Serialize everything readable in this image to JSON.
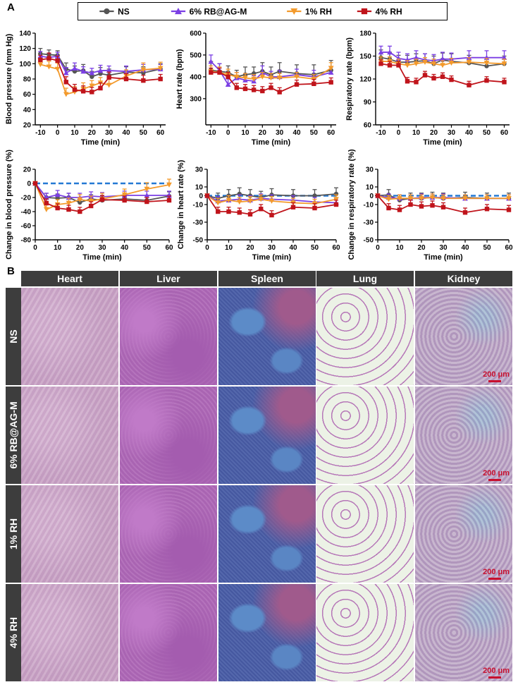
{
  "panel_labels": {
    "a": "A",
    "b": "B"
  },
  "legend": [
    {
      "name": "NS",
      "color": "#555555",
      "marker": "circle"
    },
    {
      "name": "6% RB@AG-M",
      "color": "#7b3fe4",
      "marker": "triangle-up"
    },
    {
      "name": "1% RH",
      "color": "#f39a2c",
      "marker": "triangle-down"
    },
    {
      "name": "4% RH",
      "color": "#c0141b",
      "marker": "square"
    }
  ],
  "chart_data": [
    {
      "type": "line",
      "title": "",
      "xlabel": "Time (min)",
      "ylabel": "Blood pressure (mm Hg)",
      "xlim": [
        -13,
        63
      ],
      "ylim": [
        20,
        140
      ],
      "xticks": [
        -10,
        0,
        10,
        20,
        30,
        40,
        50,
        60
      ],
      "yticks": [
        20,
        40,
        60,
        80,
        100,
        120,
        140
      ],
      "x": [
        -10,
        -5,
        0,
        5,
        10,
        15,
        20,
        25,
        30,
        40,
        50,
        60
      ],
      "series": [
        {
          "name": "NS",
          "values": [
            113,
            112,
            111,
            93,
            90,
            91,
            83,
            87,
            85,
            89,
            88,
            93
          ],
          "errors": [
            7,
            6,
            6,
            8,
            7,
            8,
            7,
            8,
            8,
            7,
            8,
            7
          ]
        },
        {
          "name": "6% RB@AG-M",
          "values": [
            110,
            108,
            110,
            88,
            94,
            90,
            88,
            91,
            91,
            90,
            92,
            93
          ],
          "errors": [
            6,
            6,
            5,
            7,
            7,
            6,
            6,
            7,
            6,
            7,
            7,
            6
          ]
        },
        {
          "name": "1% RH",
          "values": [
            99,
            96,
            93,
            60,
            63,
            67,
            71,
            75,
            72,
            84,
            92,
            94
          ],
          "errors": [
            7,
            7,
            8,
            8,
            7,
            8,
            7,
            7,
            8,
            8,
            9,
            8
          ]
        },
        {
          "name": "4% RH",
          "values": [
            105,
            107,
            104,
            76,
            66,
            64,
            63,
            68,
            82,
            80,
            78,
            80
          ],
          "errors": [
            6,
            7,
            6,
            7,
            7,
            7,
            6,
            7,
            7,
            7,
            7,
            6
          ]
        }
      ]
    },
    {
      "type": "line",
      "title": "",
      "xlabel": "Time (min)",
      "ylabel": "Heart rate (bpm)",
      "xlim": [
        -13,
        63
      ],
      "ylim": [
        180,
        600
      ],
      "xticks": [
        -10,
        0,
        10,
        20,
        30,
        40,
        50,
        60
      ],
      "yticks": [
        300,
        400,
        500,
        600
      ],
      "x": [
        -10,
        -5,
        0,
        5,
        10,
        15,
        20,
        25,
        30,
        40,
        50,
        60
      ],
      "series": [
        {
          "name": "NS",
          "values": [
            430,
            425,
            420,
            400,
            410,
            415,
            425,
            410,
            425,
            415,
            410,
            430
          ],
          "errors": [
            40,
            35,
            30,
            30,
            35,
            30,
            40,
            35,
            40,
            40,
            45,
            45
          ]
        },
        {
          "name": "6% RB@AG-M",
          "values": [
            470,
            430,
            365,
            395,
            385,
            380,
            420,
            400,
            400,
            410,
            400,
            420
          ],
          "errors": [
            30,
            30,
            25,
            25,
            30,
            25,
            30,
            25,
            30,
            25,
            30,
            25
          ]
        },
        {
          "name": "1% RH",
          "values": [
            425,
            420,
            410,
            400,
            395,
            390,
            400,
            395,
            395,
            400,
            390,
            440
          ],
          "errors": [
            25,
            25,
            25,
            20,
            20,
            20,
            20,
            20,
            20,
            20,
            20,
            25
          ]
        },
        {
          "name": "4% RH",
          "values": [
            420,
            420,
            400,
            350,
            345,
            340,
            335,
            350,
            330,
            365,
            368,
            375
          ],
          "errors": [
            20,
            20,
            20,
            20,
            20,
            20,
            20,
            20,
            20,
            20,
            20,
            20
          ]
        }
      ]
    },
    {
      "type": "line",
      "title": "",
      "xlabel": "Time (min)",
      "ylabel": "Respiratory rate (bpm)",
      "xlim": [
        -13,
        63
      ],
      "ylim": [
        60,
        180
      ],
      "xticks": [
        -10,
        0,
        10,
        20,
        30,
        40,
        50,
        60
      ],
      "yticks": [
        60,
        90,
        120,
        150,
        180
      ],
      "x": [
        -10,
        -5,
        0,
        5,
        10,
        15,
        20,
        25,
        30,
        40,
        50,
        60
      ],
      "series": [
        {
          "name": "NS",
          "values": [
            148,
            146,
            142,
            142,
            143,
            144,
            140,
            145,
            143,
            141,
            137,
            140
          ],
          "errors": [
            10,
            9,
            9,
            9,
            10,
            9,
            10,
            9,
            10,
            10,
            10,
            10
          ]
        },
        {
          "name": "6% RB@AG-M",
          "values": [
            155,
            155,
            147,
            145,
            148,
            145,
            144,
            146,
            146,
            148,
            148,
            148
          ],
          "errors": [
            8,
            8,
            8,
            8,
            9,
            8,
            8,
            9,
            8,
            9,
            9,
            9
          ]
        },
        {
          "name": "1% RH",
          "values": [
            143,
            143,
            140,
            138,
            140,
            142,
            140,
            138,
            141,
            142,
            141,
            140
          ],
          "errors": [
            6,
            6,
            6,
            6,
            6,
            6,
            6,
            6,
            6,
            6,
            6,
            6
          ]
        },
        {
          "name": "4% RH",
          "values": [
            140,
            138,
            138,
            117,
            116,
            125,
            121,
            123,
            119,
            112,
            118,
            116
          ],
          "errors": [
            5,
            5,
            5,
            5,
            5,
            5,
            5,
            5,
            5,
            5,
            5,
            5
          ]
        }
      ]
    },
    {
      "type": "line",
      "title": "",
      "xlabel": "Time (min)",
      "ylabel": "Change in blood pressure (%)",
      "xlim": [
        0,
        60
      ],
      "ylim": [
        -80,
        20
      ],
      "xticks": [
        0,
        10,
        20,
        30,
        40,
        50,
        60
      ],
      "yticks": [
        -80,
        -60,
        -40,
        -20,
        0,
        20
      ],
      "x": [
        0,
        5,
        10,
        15,
        20,
        25,
        30,
        40,
        50,
        60
      ],
      "series": [
        {
          "name": "NS",
          "values": [
            0,
            -20,
            -21,
            -20,
            -27,
            -22,
            -24,
            -22,
            -24,
            -18
          ],
          "errors": [
            1,
            6,
            6,
            6,
            6,
            6,
            6,
            6,
            7,
            6
          ]
        },
        {
          "name": "6% RB@AG-M",
          "values": [
            0,
            -20,
            -16,
            -20,
            -20,
            -18,
            -19,
            -17,
            -17,
            -17
          ],
          "errors": [
            1,
            6,
            6,
            6,
            6,
            6,
            6,
            6,
            6,
            6
          ]
        },
        {
          "name": "1% RH",
          "values": [
            0,
            -37,
            -30,
            -28,
            -23,
            -25,
            -22,
            -16,
            -8,
            -2
          ],
          "errors": [
            1,
            8,
            7,
            7,
            7,
            7,
            8,
            8,
            9,
            8
          ]
        },
        {
          "name": "4% RH",
          "values": [
            0,
            -28,
            -35,
            -37,
            -40,
            -32,
            -23,
            -24,
            -26,
            -24
          ],
          "errors": [
            1,
            6,
            6,
            6,
            6,
            6,
            6,
            6,
            6,
            6
          ]
        },
        {
          "name": "baseline",
          "values": [
            0,
            0,
            0,
            0,
            0,
            0,
            0,
            0,
            0,
            0
          ],
          "errors": [
            0,
            0,
            0,
            0,
            0,
            0,
            0,
            0,
            0,
            0
          ]
        }
      ]
    },
    {
      "type": "line",
      "title": "",
      "xlabel": "Time (min)",
      "ylabel": "Change in heart rate (%)",
      "xlim": [
        0,
        60
      ],
      "ylim": [
        -50,
        30
      ],
      "xticks": [
        0,
        10,
        20,
        30,
        40,
        50,
        60
      ],
      "yticks": [
        -50,
        -30,
        -10,
        0,
        10,
        30
      ],
      "x": [
        0,
        5,
        10,
        15,
        20,
        25,
        30,
        40,
        50,
        60
      ],
      "series": [
        {
          "name": "NS",
          "values": [
            0,
            -3,
            0,
            2,
            0,
            -2,
            1,
            0,
            0,
            2
          ],
          "errors": [
            1,
            6,
            7,
            7,
            7,
            7,
            7,
            7,
            7,
            7
          ]
        },
        {
          "name": "6% RB@AG-M",
          "values": [
            0,
            -6,
            -5,
            -4,
            -5,
            -3,
            -4,
            -5,
            -7,
            -8
          ],
          "errors": [
            1,
            5,
            5,
            5,
            5,
            5,
            5,
            5,
            5,
            5
          ]
        },
        {
          "name": "1% RH",
          "values": [
            0,
            -8,
            -5,
            -7,
            -6,
            -4,
            -6,
            -8,
            -9,
            -4
          ],
          "errors": [
            1,
            5,
            5,
            5,
            5,
            5,
            5,
            5,
            5,
            5
          ]
        },
        {
          "name": "4% RH",
          "values": [
            0,
            -18,
            -18,
            -19,
            -21,
            -15,
            -22,
            -13,
            -14,
            -10
          ],
          "errors": [
            1,
            5,
            5,
            5,
            5,
            5,
            5,
            5,
            5,
            5
          ]
        },
        {
          "name": "baseline",
          "values": [
            0,
            0,
            0,
            0,
            0,
            0,
            0,
            0,
            0,
            0
          ],
          "errors": [
            0,
            0,
            0,
            0,
            0,
            0,
            0,
            0,
            0,
            0
          ]
        }
      ]
    },
    {
      "type": "line",
      "title": "",
      "xlabel": "Time (min)",
      "ylabel": "Change in respiratory rate (%)",
      "xlim": [
        0,
        60
      ],
      "ylim": [
        -50,
        30
      ],
      "xticks": [
        0,
        10,
        20,
        30,
        40,
        50,
        60
      ],
      "yticks": [
        -50,
        -30,
        -10,
        0,
        10,
        30
      ],
      "x": [
        0,
        5,
        10,
        15,
        20,
        25,
        30,
        40,
        50,
        60
      ],
      "series": [
        {
          "name": "NS",
          "values": [
            0,
            1,
            -5,
            -3,
            -3,
            -2,
            -3,
            -2,
            -3,
            -3
          ],
          "errors": [
            1,
            6,
            6,
            6,
            6,
            6,
            6,
            6,
            6,
            6
          ]
        },
        {
          "name": "6% RB@AG-M",
          "values": [
            0,
            -2,
            -3,
            -3,
            -2,
            -2,
            -2,
            -3,
            -3,
            -3
          ],
          "errors": [
            1,
            4,
            4,
            4,
            4,
            4,
            4,
            4,
            4,
            4
          ]
        },
        {
          "name": "1% RH",
          "values": [
            0,
            -4,
            -3,
            -3,
            -3,
            -2,
            -3,
            -3,
            -3,
            -3
          ],
          "errors": [
            1,
            4,
            4,
            4,
            4,
            4,
            4,
            4,
            4,
            4
          ]
        },
        {
          "name": "4% RH",
          "values": [
            0,
            -14,
            -16,
            -10,
            -12,
            -11,
            -13,
            -19,
            -15,
            -16
          ],
          "errors": [
            1,
            5,
            5,
            5,
            5,
            5,
            5,
            5,
            5,
            5
          ]
        },
        {
          "name": "baseline",
          "values": [
            0,
            0,
            0,
            0,
            0,
            0,
            0,
            0,
            0,
            0
          ],
          "errors": [
            0,
            0,
            0,
            0,
            0,
            0,
            0,
            0,
            0,
            0
          ]
        }
      ]
    }
  ],
  "histology": {
    "columns": [
      "Heart",
      "Liver",
      "Spleen",
      "Lung",
      "Kidney"
    ],
    "rows": [
      "NS",
      "6% RB@AG-M",
      "1% RH",
      "4% RH"
    ],
    "scale_bar": "200 μm",
    "tissue_colors": {
      "Heart": "#c8a2c4",
      "Liver": "#b06ab8",
      "Spleen": "#4b5fa8",
      "Lung": "#e2e8dc",
      "Kidney": "#bca6c4"
    }
  }
}
